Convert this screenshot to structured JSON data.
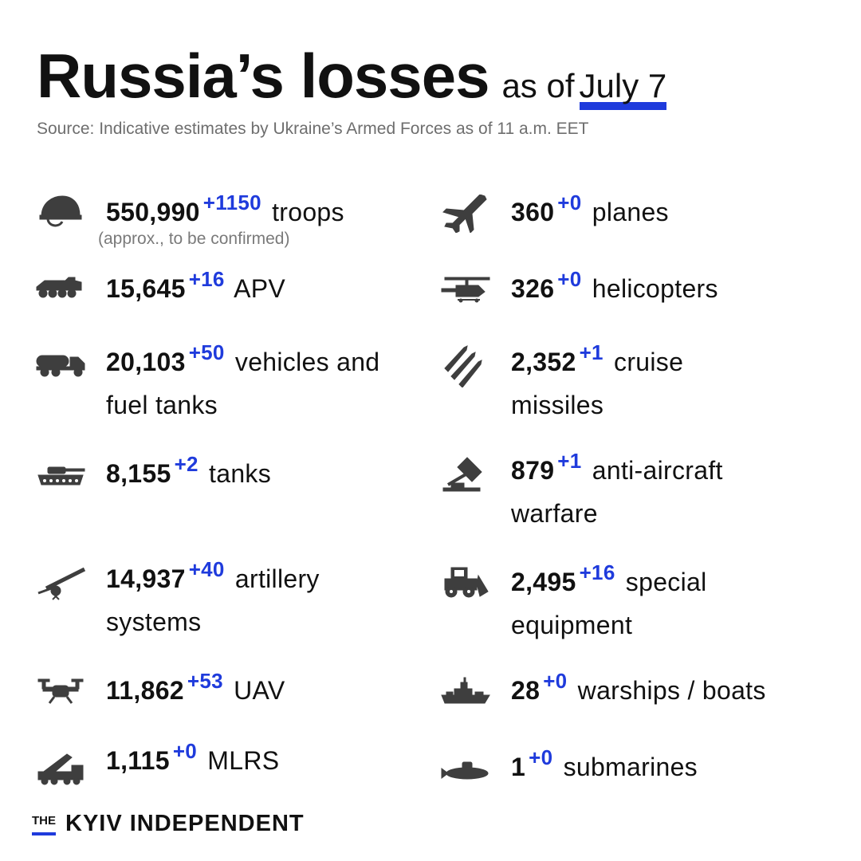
{
  "header": {
    "title": "Russia’s losses",
    "subtitle": "as of",
    "date": "July 7",
    "source": "Source: Indicative estimates by Ukraine’s Armed Forces as of 11 a.m. EET"
  },
  "colors": {
    "accent": "#1f3bdc",
    "text": "#111111",
    "muted": "#6e6e6e",
    "icon": "#3e3e3e"
  },
  "left": [
    {
      "icon": "helmet-icon",
      "value": "550,990",
      "delta": "+1150",
      "label": "troops",
      "note": "(approx., to be confirmed)"
    },
    {
      "icon": "apv-icon",
      "value": "15,645",
      "delta": "+16",
      "label": "APV"
    },
    {
      "icon": "fuel-truck-icon",
      "value": "20,103",
      "delta": "+50",
      "label": "vehicles and",
      "label2": "fuel tanks"
    },
    {
      "icon": "tank-icon",
      "value": "8,155",
      "delta": "+2",
      "label": "tanks"
    },
    {
      "icon": "artillery-icon",
      "value": "14,937",
      "delta": "+40",
      "label": "artillery",
      "label2": "systems"
    },
    {
      "icon": "drone-icon",
      "value": "11,862",
      "delta": "+53",
      "label": "UAV"
    },
    {
      "icon": "mlrs-icon",
      "value": "1,115",
      "delta": "+0",
      "label": "MLRS"
    }
  ],
  "right": [
    {
      "icon": "plane-icon",
      "value": "360",
      "delta": "+0",
      "label": "planes"
    },
    {
      "icon": "helicopter-icon",
      "value": "326",
      "delta": "+0",
      "label": "helicopters"
    },
    {
      "icon": "missiles-icon",
      "value": "2,352",
      "delta": "+1",
      "label": "cruise",
      "label2": "missiles"
    },
    {
      "icon": "anti-aircraft-icon",
      "value": "879",
      "delta": "+1",
      "label": "anti-aircraft",
      "label2": "warfare"
    },
    {
      "icon": "bulldozer-icon",
      "value": "2,495",
      "delta": "+16",
      "label": "special",
      "label2": "equipment"
    },
    {
      "icon": "warship-icon",
      "value": "28",
      "delta": "+0",
      "label": "warships / boats"
    },
    {
      "icon": "submarine-icon",
      "value": "1",
      "delta": "+0",
      "label": "submarines"
    }
  ],
  "footer": {
    "logo_the": "THE",
    "logo_name": "KYIV INDEPENDENT"
  }
}
